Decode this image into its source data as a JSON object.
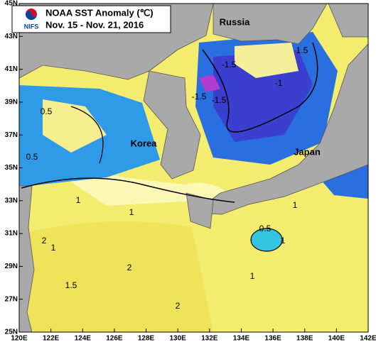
{
  "header": {
    "title": "NOAA SST Anomaly (℃)",
    "period": "Nov. 15 - Nov. 21, 2016",
    "logo_text": "NIFS"
  },
  "axes": {
    "longitude_labels": [
      "120E",
      "122E",
      "124E",
      "126E",
      "128E",
      "130E",
      "132E",
      "134E",
      "136E",
      "138E",
      "140E",
      "142E"
    ],
    "latitude_labels": [
      "45N",
      "43N",
      "41N",
      "39N",
      "37N",
      "35N",
      "33N",
      "31N",
      "29N",
      "27N",
      "25N"
    ]
  },
  "places": [
    "Russia",
    "Korea",
    "Japan"
  ],
  "contour_labels": [
    "-1.5",
    "-1.5",
    "-1.5",
    "1.5",
    "-1",
    "0.5",
    "0.5",
    "1",
    "1",
    "1",
    "2",
    "2",
    "2",
    "1.5",
    "1",
    "0.5",
    "1",
    "1"
  ]
}
